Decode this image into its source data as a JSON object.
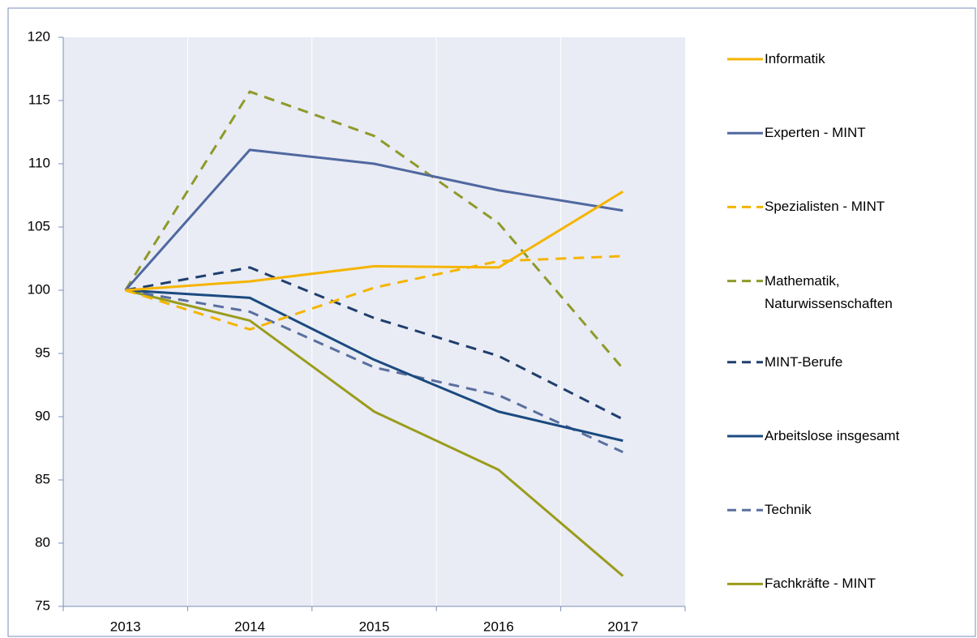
{
  "chart_data": {
    "type": "line",
    "categories": [
      "2013",
      "2014",
      "2015",
      "2016",
      "2017"
    ],
    "series": [
      {
        "name": "Informatik",
        "color": "#f5b400",
        "dash": false,
        "values": [
          100,
          100.7,
          101.9,
          101.8,
          107.8
        ]
      },
      {
        "name": "Experten - MINT",
        "color": "#5068a0",
        "dash": false,
        "values": [
          100,
          111.1,
          110.0,
          107.9,
          106.3
        ]
      },
      {
        "name": "Spezialisten - MINT",
        "color": "#f5b400",
        "dash": true,
        "values": [
          100,
          96.9,
          100.2,
          102.3,
          102.7
        ]
      },
      {
        "name": "Mathematik, Naturwissenschaften",
        "color": "#8f9a2a",
        "dash": true,
        "values": [
          100,
          115.7,
          112.2,
          105.3,
          93.8
        ]
      },
      {
        "name": "MINT-Berufe",
        "color": "#1f3e6e",
        "dash": true,
        "values": [
          100,
          101.8,
          97.8,
          94.8,
          89.8
        ]
      },
      {
        "name": "Arbeitslose insgesamt",
        "color": "#1b4a80",
        "dash": false,
        "values": [
          100,
          99.4,
          94.5,
          90.4,
          88.1
        ]
      },
      {
        "name": "Technik",
        "color": "#5a6f9f",
        "dash": true,
        "values": [
          100,
          98.3,
          93.9,
          91.7,
          87.2
        ]
      },
      {
        "name": "Fachkräfte - MINT",
        "color": "#9a9c1c",
        "dash": false,
        "values": [
          100,
          97.6,
          90.4,
          85.8,
          77.4
        ]
      }
    ],
    "ylim": [
      75,
      120
    ],
    "yticks": [
      75,
      80,
      85,
      90,
      95,
      100,
      105,
      110,
      115,
      120
    ],
    "grid": true,
    "legend": "right"
  }
}
